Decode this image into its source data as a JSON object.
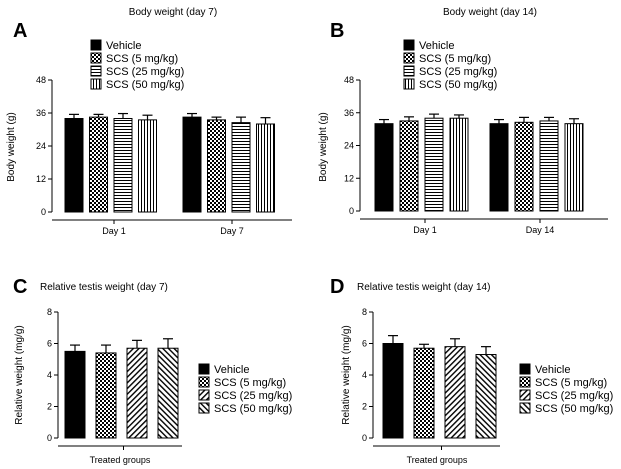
{
  "colors": {
    "ink": "#000000",
    "background": "#ffffff"
  },
  "chart_data": [
    {
      "panel": "A",
      "type": "bar",
      "title": "Body weight (day 7)",
      "xlabel": "",
      "ylabel": "Body weight (g)",
      "ylim": [
        0,
        48
      ],
      "yticks": [
        "0",
        "12",
        "24",
        "36",
        "48"
      ],
      "categories": [
        "Day 1",
        "Day 7"
      ],
      "legend": "top-left",
      "series": [
        {
          "name": "Vehicle",
          "pattern": "solid",
          "values": [
            34,
            34.5
          ],
          "errors": [
            1.5,
            1.3
          ]
        },
        {
          "name": "SCS (5 mg/kg)",
          "pattern": "checker",
          "values": [
            34.5,
            33.5
          ],
          "errors": [
            1.0,
            1.0
          ]
        },
        {
          "name": "SCS (25 mg/kg)",
          "pattern": "hlines",
          "values": [
            34,
            32.5
          ],
          "errors": [
            1.8,
            2.0
          ]
        },
        {
          "name": "SCS (50 mg/kg)",
          "pattern": "vlines",
          "values": [
            33.5,
            32
          ],
          "errors": [
            1.7,
            2.3
          ]
        }
      ]
    },
    {
      "panel": "B",
      "type": "bar",
      "title": "Body weight (day 14)",
      "xlabel": "",
      "ylabel": "Body weight (g)",
      "ylim": [
        0,
        48
      ],
      "yticks": [
        "0",
        "12",
        "24",
        "36",
        "48"
      ],
      "categories": [
        "Day 1",
        "Day 14"
      ],
      "legend": "top-left",
      "series": [
        {
          "name": "Vehicle",
          "pattern": "solid",
          "values": [
            32,
            32
          ],
          "errors": [
            1.5,
            1.5
          ]
        },
        {
          "name": "SCS (5 mg/kg)",
          "pattern": "checker",
          "values": [
            33,
            32.5
          ],
          "errors": [
            1.5,
            1.8
          ]
        },
        {
          "name": "SCS (25 mg/kg)",
          "pattern": "hlines",
          "values": [
            34,
            33
          ],
          "errors": [
            1.5,
            1.3
          ]
        },
        {
          "name": "SCS (50 mg/kg)",
          "pattern": "vlines",
          "values": [
            34,
            32
          ],
          "errors": [
            1.2,
            1.8
          ]
        }
      ]
    },
    {
      "panel": "C",
      "type": "bar",
      "title": "Relative testis weight (day 7)",
      "xlabel": "Treated groups",
      "ylabel": "Relative weight (mg/g)",
      "ylim": [
        0,
        8
      ],
      "yticks": [
        "0",
        "2",
        "4",
        "6",
        "8"
      ],
      "categories": [
        ""
      ],
      "legend": "right",
      "series": [
        {
          "name": "Vehicle",
          "pattern": "solid",
          "values": [
            5.5
          ],
          "errors": [
            0.4
          ]
        },
        {
          "name": "SCS (5 mg/kg)",
          "pattern": "checker",
          "values": [
            5.4
          ],
          "errors": [
            0.5
          ]
        },
        {
          "name": "SCS (25 mg/kg)",
          "pattern": "diag-fwd",
          "values": [
            5.7
          ],
          "errors": [
            0.5
          ]
        },
        {
          "name": "SCS (50 mg/kg)",
          "pattern": "diag-back",
          "values": [
            5.7
          ],
          "errors": [
            0.6
          ]
        }
      ]
    },
    {
      "panel": "D",
      "type": "bar",
      "title": "Relative testis weight (day 14)",
      "xlabel": "Treated groups",
      "ylabel": "Relative weight (mg/g)",
      "ylim": [
        0,
        8
      ],
      "yticks": [
        "0",
        "2",
        "4",
        "6",
        "8"
      ],
      "categories": [
        ""
      ],
      "legend": "right",
      "series": [
        {
          "name": "Vehicle",
          "pattern": "solid",
          "values": [
            6.0
          ],
          "errors": [
            0.5
          ]
        },
        {
          "name": "SCS (5 mg/kg)",
          "pattern": "checker",
          "values": [
            5.7
          ],
          "errors": [
            0.25
          ]
        },
        {
          "name": "SCS (25 mg/kg)",
          "pattern": "diag-fwd",
          "values": [
            5.8
          ],
          "errors": [
            0.5
          ]
        },
        {
          "name": "SCS (50 mg/kg)",
          "pattern": "diag-back",
          "values": [
            5.3
          ],
          "errors": [
            0.5
          ]
        }
      ]
    }
  ]
}
